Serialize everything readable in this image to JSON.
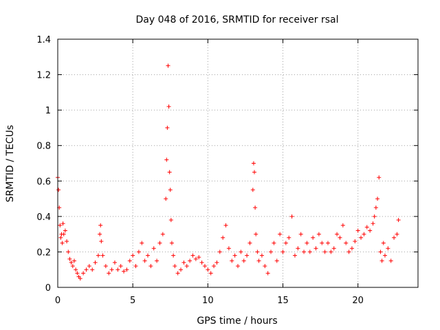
{
  "chart_data": {
    "type": "scatter",
    "title": "Day 048 of 2016, SRMTID for receiver rsal",
    "xlabel": "GPS time / hours",
    "ylabel": "SRMTID / TECUs",
    "xlim": [
      0,
      24
    ],
    "ylim": [
      0,
      1.4
    ],
    "xticks": [
      0,
      5,
      10,
      15,
      20
    ],
    "xtick_labels": [
      "0",
      "5",
      "10",
      "15",
      "20"
    ],
    "yticks": [
      0,
      0.2,
      0.4,
      0.6,
      0.8,
      1.0,
      1.2,
      1.4
    ],
    "ytick_labels": [
      "0",
      "0.2",
      "0.4",
      "0.6",
      "0.8",
      "1",
      "1.2",
      "1.4"
    ],
    "grid": true,
    "marker": "+",
    "color": "#ff0000",
    "series": [
      {
        "name": "SRMTID",
        "x": [
          0.0,
          0.05,
          0.1,
          0.15,
          0.2,
          0.25,
          0.3,
          0.35,
          0.4,
          0.5,
          0.6,
          0.7,
          0.8,
          0.9,
          1.0,
          1.1,
          1.2,
          1.3,
          1.4,
          1.5,
          1.7,
          1.9,
          2.1,
          2.3,
          2.5,
          2.7,
          2.8,
          2.85,
          2.9,
          3.0,
          3.2,
          3.4,
          3.6,
          3.8,
          4.0,
          4.2,
          4.4,
          4.6,
          4.8,
          5.0,
          5.2,
          5.4,
          5.6,
          5.8,
          6.0,
          6.2,
          6.4,
          6.6,
          6.8,
          7.0,
          7.2,
          7.25,
          7.3,
          7.35,
          7.4,
          7.45,
          7.5,
          7.55,
          7.6,
          7.7,
          7.8,
          8.0,
          8.2,
          8.4,
          8.6,
          8.8,
          9.0,
          9.2,
          9.4,
          9.6,
          9.8,
          10.0,
          10.2,
          10.4,
          10.6,
          10.8,
          11.0,
          11.2,
          11.4,
          11.6,
          11.8,
          12.0,
          12.2,
          12.4,
          12.6,
          12.8,
          13.0,
          13.05,
          13.1,
          13.15,
          13.2,
          13.3,
          13.4,
          13.6,
          13.8,
          14.0,
          14.2,
          14.4,
          14.6,
          14.8,
          15.0,
          15.2,
          15.4,
          15.6,
          15.8,
          16.0,
          16.2,
          16.4,
          16.6,
          16.8,
          17.0,
          17.2,
          17.4,
          17.6,
          17.8,
          18.0,
          18.2,
          18.4,
          18.6,
          18.8,
          19.0,
          19.2,
          19.4,
          19.6,
          19.8,
          20.0,
          20.2,
          20.4,
          20.6,
          20.8,
          21.0,
          21.1,
          21.2,
          21.3,
          21.4,
          21.5,
          21.6,
          21.7,
          21.8,
          22.0,
          22.2,
          22.4,
          22.6,
          22.7
        ],
        "y": [
          0.62,
          0.55,
          0.45,
          0.35,
          0.28,
          0.3,
          0.25,
          0.36,
          0.3,
          0.32,
          0.26,
          0.2,
          0.16,
          0.14,
          0.12,
          0.15,
          0.1,
          0.08,
          0.06,
          0.05,
          0.08,
          0.1,
          0.12,
          0.1,
          0.14,
          0.18,
          0.3,
          0.35,
          0.26,
          0.18,
          0.12,
          0.08,
          0.1,
          0.14,
          0.1,
          0.12,
          0.09,
          0.1,
          0.15,
          0.18,
          0.12,
          0.2,
          0.25,
          0.15,
          0.18,
          0.12,
          0.22,
          0.15,
          0.25,
          0.3,
          0.5,
          0.72,
          0.9,
          1.25,
          1.02,
          0.65,
          0.55,
          0.38,
          0.25,
          0.18,
          0.12,
          0.08,
          0.1,
          0.14,
          0.12,
          0.15,
          0.18,
          0.16,
          0.17,
          0.14,
          0.12,
          0.1,
          0.08,
          0.12,
          0.14,
          0.2,
          0.28,
          0.35,
          0.22,
          0.15,
          0.18,
          0.12,
          0.2,
          0.15,
          0.18,
          0.25,
          0.55,
          0.7,
          0.65,
          0.45,
          0.3,
          0.2,
          0.15,
          0.18,
          0.12,
          0.08,
          0.2,
          0.25,
          0.15,
          0.3,
          0.2,
          0.25,
          0.28,
          0.4,
          0.18,
          0.22,
          0.3,
          0.2,
          0.25,
          0.2,
          0.28,
          0.22,
          0.3,
          0.25,
          0.2,
          0.25,
          0.2,
          0.22,
          0.3,
          0.28,
          0.35,
          0.25,
          0.2,
          0.22,
          0.26,
          0.32,
          0.28,
          0.3,
          0.34,
          0.32,
          0.36,
          0.4,
          0.45,
          0.5,
          0.62,
          0.2,
          0.15,
          0.25,
          0.18,
          0.22,
          0.15,
          0.28,
          0.3,
          0.38
        ]
      }
    ]
  }
}
